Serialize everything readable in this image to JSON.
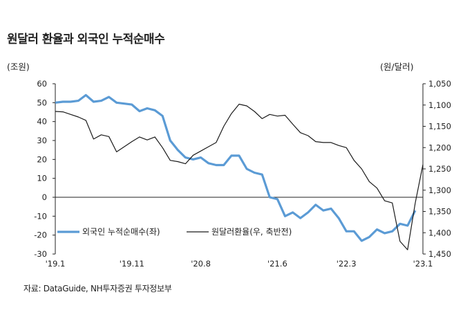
{
  "title": "원달러 환율과 외국인 누적순매수",
  "unit_left": "(조원)",
  "unit_right": "(원/달러)",
  "source": "자료: DataGuide, NH투자증권 투자정보부",
  "chart_data": {
    "type": "line",
    "x_ticks": [
      "'19.1",
      "'19.11",
      "'20.8",
      "'21.6",
      "'22.3",
      "'23.1"
    ],
    "y_left": {
      "ticks": [
        60,
        50,
        40,
        30,
        20,
        10,
        0,
        -10,
        -20,
        -30
      ],
      "ylim": [
        -30,
        60
      ]
    },
    "y_right": {
      "ticks": [
        "1,050",
        "1,100",
        "1,150",
        "1,200",
        "1,250",
        "1,300",
        "1,350",
        "1,400",
        "1,450"
      ],
      "ylim": [
        1050,
        1450
      ],
      "inverted": true
    },
    "series": [
      {
        "name": "외국인 누적순매수(좌)",
        "axis": "left",
        "color": "#5b9bd5",
        "values": [
          50,
          50.5,
          50.5,
          51,
          54,
          50.5,
          51,
          53,
          50,
          49.5,
          49,
          45.5,
          47,
          46,
          43,
          30,
          25,
          21,
          20,
          21,
          18,
          17,
          17,
          22,
          22,
          15,
          13,
          12,
          0,
          -1,
          -10,
          -8,
          -11,
          -8,
          -4,
          -7,
          -6,
          -11,
          -18,
          -18,
          -23,
          -21,
          -17,
          -19,
          -18,
          -14,
          -15,
          -7
        ],
        "x": [
          0,
          1,
          2,
          3,
          4,
          5,
          6,
          7,
          8,
          9,
          10,
          11,
          12,
          13,
          14,
          15,
          16,
          17,
          18,
          19,
          20,
          21,
          22,
          23,
          24,
          25,
          26,
          27,
          28,
          29,
          30,
          31,
          32,
          33,
          34,
          35,
          36,
          37,
          38,
          39,
          40,
          41,
          42,
          43,
          44,
          45,
          46,
          47
        ]
      },
      {
        "name": "원달러환율(우, 축반전)",
        "axis": "right",
        "color": "#1a1a1a",
        "values": [
          1115,
          1116,
          1122,
          1128,
          1136,
          1180,
          1170,
          1174,
          1210,
          1198,
          1186,
          1175,
          1182,
          1175,
          1200,
          1230,
          1233,
          1238,
          1218,
          1208,
          1198,
          1188,
          1150,
          1120,
          1098,
          1102,
          1115,
          1132,
          1122,
          1126,
          1124,
          1145,
          1165,
          1172,
          1186,
          1188,
          1188,
          1195,
          1200,
          1230,
          1250,
          1280,
          1295,
          1325,
          1330,
          1420,
          1440,
          1330,
          1240
        ],
        "x": [
          0,
          1,
          2,
          3,
          4,
          5,
          6,
          7,
          8,
          9,
          10,
          11,
          12,
          13,
          14,
          15,
          16,
          17,
          18,
          19,
          20,
          21,
          22,
          23,
          24,
          25,
          26,
          27,
          28,
          29,
          30,
          31,
          32,
          33,
          34,
          35,
          36,
          37,
          38,
          39,
          40,
          41,
          42,
          43,
          44,
          45,
          46,
          47,
          48
        ]
      }
    ],
    "legend_placement": "bottom-center",
    "grid": false
  }
}
